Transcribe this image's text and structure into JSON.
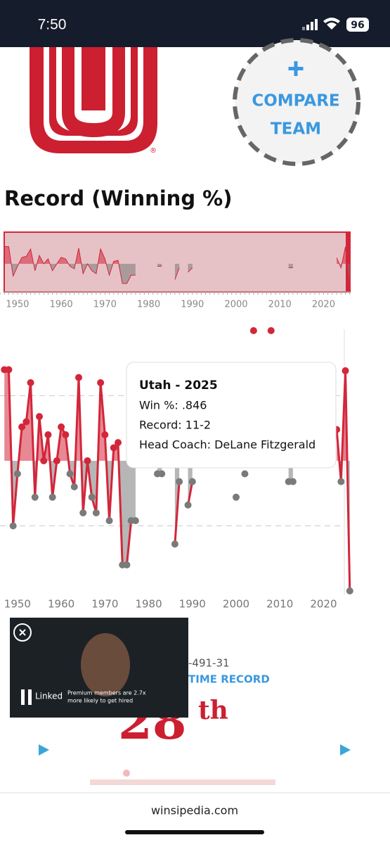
{
  "status_bar": {
    "time": "7:50",
    "battery": "96"
  },
  "compare_team": {
    "line1": "COMPARE",
    "line2": "TEAM"
  },
  "logo_mark": "®",
  "chart": {
    "type": "line",
    "title": "Record (Winning %)",
    "x": [
      1947,
      1948,
      1949,
      1950,
      1951,
      1952,
      1953,
      1954,
      1955,
      1956,
      1957,
      1958,
      1959,
      1960,
      1961,
      1962,
      1963,
      1964,
      1965,
      1966,
      1967,
      1968,
      1969,
      1970,
      1971,
      1972,
      1973,
      1974,
      1975,
      1976,
      1977,
      1978,
      1979,
      1980,
      1981,
      1982,
      1983,
      1984,
      1985,
      1986,
      1987,
      1988,
      1989,
      1990,
      1991,
      1992,
      1993,
      1994,
      1995,
      1996,
      1997,
      1998,
      1999,
      2000,
      2001,
      2002,
      2003,
      2004,
      2005,
      2006,
      2007,
      2008,
      2009,
      2010,
      2011,
      2012,
      2013,
      2014,
      2015,
      2016,
      2017,
      2018,
      2019,
      2020,
      2021,
      2022,
      2023,
      2024,
      2025,
      2026
    ],
    "values": [
      0.85,
      0.85,
      0.25,
      0.45,
      0.63,
      0.65,
      0.8,
      0.36,
      0.67,
      0.5,
      0.6,
      0.36,
      0.5,
      0.63,
      0.6,
      0.45,
      0.4,
      0.82,
      0.3,
      0.5,
      0.36,
      0.3,
      0.8,
      0.6,
      0.27,
      0.55,
      0.57,
      0.1,
      0.1,
      0.27,
      0.27,
      null,
      null,
      null,
      null,
      0.45,
      0.45,
      null,
      null,
      0.18,
      0.42,
      null,
      0.33,
      0.42,
      null,
      null,
      null,
      null,
      null,
      null,
      null,
      null,
      null,
      0.36,
      null,
      0.45,
      null,
      1.0,
      null,
      null,
      null,
      1.0,
      null,
      null,
      null,
      0.42,
      0.42,
      null,
      null,
      null,
      null,
      null,
      null,
      null,
      null,
      null,
      0.62,
      0.42,
      0.846,
      0
    ],
    "color": "#d3263a",
    "below_color": "#7a7a7a",
    "xlim": [
      1946,
      2027
    ],
    "ylim": [
      0,
      1
    ],
    "baseline": 0.5,
    "xticks": [
      1950,
      1960,
      1970,
      1980,
      1990,
      2000,
      2010,
      2020
    ],
    "yticks": [
      0.25,
      0.75
    ],
    "grid": true
  },
  "tooltip": {
    "title": "Utah - 2025",
    "win": "Win %: .846",
    "record": "Record: 11-2",
    "coach": "Head Coach: DeLane Fitzgerald"
  },
  "record_summary": {
    "partial_record": "-491-31",
    "label": "TIME RECORD",
    "rank": "28",
    "rank_suffix": "th"
  },
  "ad": {
    "brand": "Linked",
    "line1": "Premium members are 2.7x",
    "line2": "more likely to get hired"
  },
  "footer": {
    "url": "winsipedia.com"
  }
}
